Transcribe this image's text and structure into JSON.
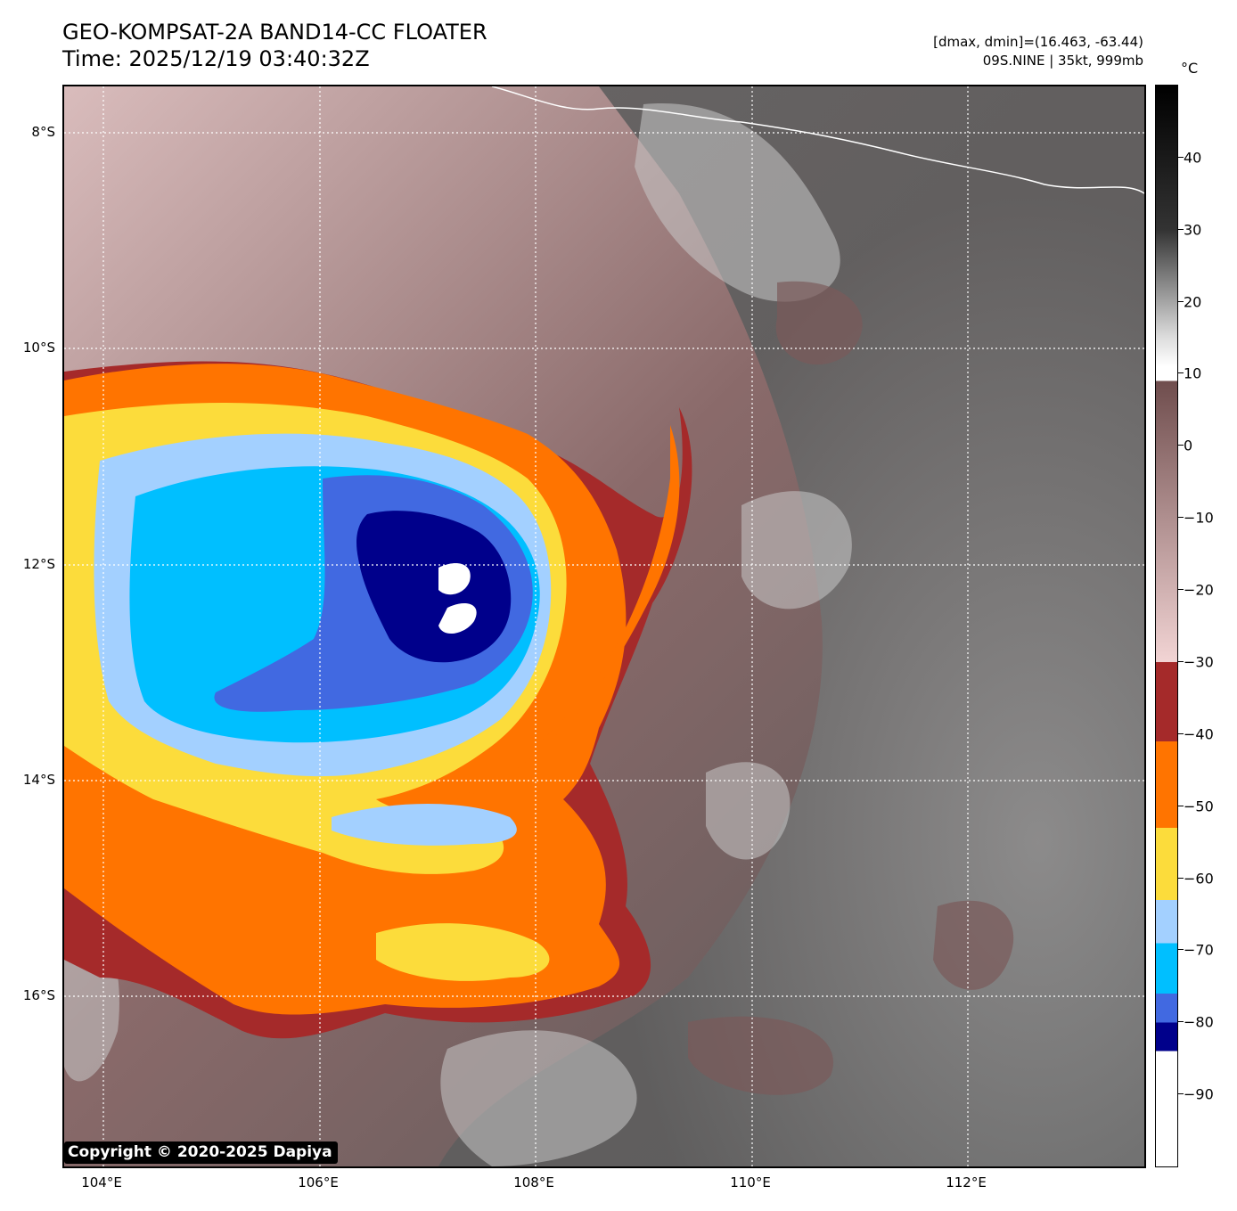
{
  "header": {
    "title_line1": "GEO-KOMPSAT-2A BAND14-CC FLOATER",
    "title_line2": "Time: 2025/12/19 03:40:32Z",
    "info_line1": "[dmax, dmin]=(16.463, -63.44)",
    "info_line2": "09S.NINE | 35kt, 999mb"
  },
  "map": {
    "lat_labels": [
      "8°S",
      "10°S",
      "12°S",
      "14°S",
      "16°S"
    ],
    "lon_labels": [
      "104°E",
      "106°E",
      "108°E",
      "110°E",
      "112°E"
    ],
    "storm_name": "09S.NINE",
    "intensity": "35kt, 999mb"
  },
  "colorbar": {
    "unit": "°C",
    "tick_labels": [
      "40",
      "30",
      "20",
      "10",
      "0",
      "−10",
      "−20",
      "−30",
      "−40",
      "−50",
      "−60",
      "−70",
      "−80",
      "−90"
    ],
    "colors": {
      "white": "#ffffff",
      "navy": "#00008b",
      "royal_blue": "#4169e1",
      "deep_sky": "#00bfff",
      "light_blue": "#a3d0ff",
      "yellow": "#fcdc3b",
      "orange": "#ff7400",
      "dark_red": "#a52a2a",
      "pink": "#f2d4d4",
      "brown": "#6f4d4d",
      "black": "#000000"
    }
  },
  "footer": {
    "copyright": "Copyright © 2020-2025 Dapiya"
  }
}
